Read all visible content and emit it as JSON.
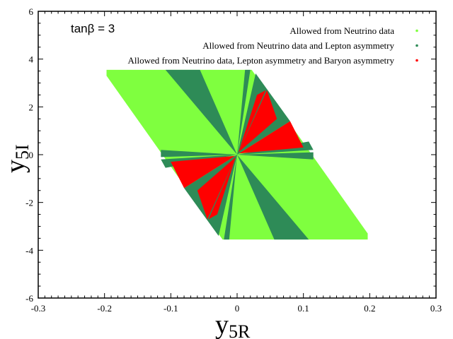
{
  "chart_data": {
    "type": "scatter",
    "title": "",
    "annotation": "tanβ = 3",
    "xlabel": {
      "main": "y",
      "sub": "5R"
    },
    "ylabel": {
      "main": "y",
      "sub": "5I"
    },
    "xlim": [
      -0.3,
      0.3
    ],
    "ylim": [
      -6,
      6
    ],
    "x_ticks": [
      "-0.3",
      "-0.2",
      "-0.1",
      "0",
      "0.1",
      "0.2",
      "0.3"
    ],
    "y_ticks": [
      "-6",
      "-4",
      "-2",
      "0",
      "2",
      "4",
      "6"
    ],
    "grid": false,
    "legend_position": "top-right",
    "series": [
      {
        "name": "Allowed from Neutrino data",
        "color": "#7fff3f",
        "region": [
          [
            -0.197,
            3.55
          ],
          [
            -0.197,
            3.3
          ],
          [
            -0.022,
            -3.55
          ],
          [
            0.197,
            -3.55
          ],
          [
            0.197,
            -3.3
          ],
          [
            0.022,
            3.55
          ]
        ]
      },
      {
        "name": "Allowed from Neutrino data and Lepton asymmetry",
        "color": "#2e8b57",
        "wedges": [
          [
            [
              0,
              0
            ],
            [
              -0.108,
              3.55
            ],
            [
              -0.056,
              3.55
            ]
          ],
          [
            [
              0,
              0
            ],
            [
              0.108,
              -3.55
            ],
            [
              0.056,
              -3.55
            ]
          ],
          [
            [
              0,
              0
            ],
            [
              0.012,
              3.55
            ],
            [
              0.02,
              3.55
            ]
          ],
          [
            [
              0,
              0
            ],
            [
              -0.012,
              -3.55
            ],
            [
              -0.02,
              -3.55
            ]
          ],
          [
            [
              0,
              0
            ],
            [
              0.028,
              3.4
            ],
            [
              0.08,
              1.4
            ]
          ],
          [
            [
              0,
              0
            ],
            [
              -0.028,
              -3.4
            ],
            [
              -0.08,
              -1.4
            ]
          ],
          [
            [
              0,
              0
            ],
            [
              0.108,
              0.55
            ],
            [
              0.115,
              0.2
            ]
          ],
          [
            [
              0,
              0
            ],
            [
              -0.108,
              -0.55
            ],
            [
              -0.115,
              -0.2
            ]
          ],
          [
            [
              0,
              0
            ],
            [
              -0.115,
              -0.1
            ],
            [
              -0.115,
              0.2
            ]
          ],
          [
            [
              0,
              0
            ],
            [
              0.115,
              0.1
            ],
            [
              0.115,
              -0.2
            ]
          ]
        ]
      },
      {
        "name": "Allowed from Neutrino data, Lepton asymmetry and Baryon asymmetry",
        "color": "#ff0000",
        "wedges": [
          [
            [
              0.002,
              0.1
            ],
            [
              0.043,
              2.7
            ],
            [
              0.03,
              2.5
            ]
          ],
          [
            [
              0.002,
              0.1
            ],
            [
              0.045,
              2.7
            ],
            [
              0.06,
              1.5
            ]
          ],
          [
            [
              0.003,
              0.05
            ],
            [
              0.08,
              1.4
            ],
            [
              0.1,
              0.3
            ]
          ],
          [
            [
              -0.002,
              -0.1
            ],
            [
              -0.043,
              -2.7
            ],
            [
              -0.03,
              -2.5
            ]
          ],
          [
            [
              -0.002,
              -0.1
            ],
            [
              -0.045,
              -2.7
            ],
            [
              -0.06,
              -1.5
            ]
          ],
          [
            [
              -0.003,
              -0.05
            ],
            [
              -0.08,
              -1.4
            ],
            [
              -0.1,
              -0.3
            ]
          ]
        ]
      }
    ]
  }
}
